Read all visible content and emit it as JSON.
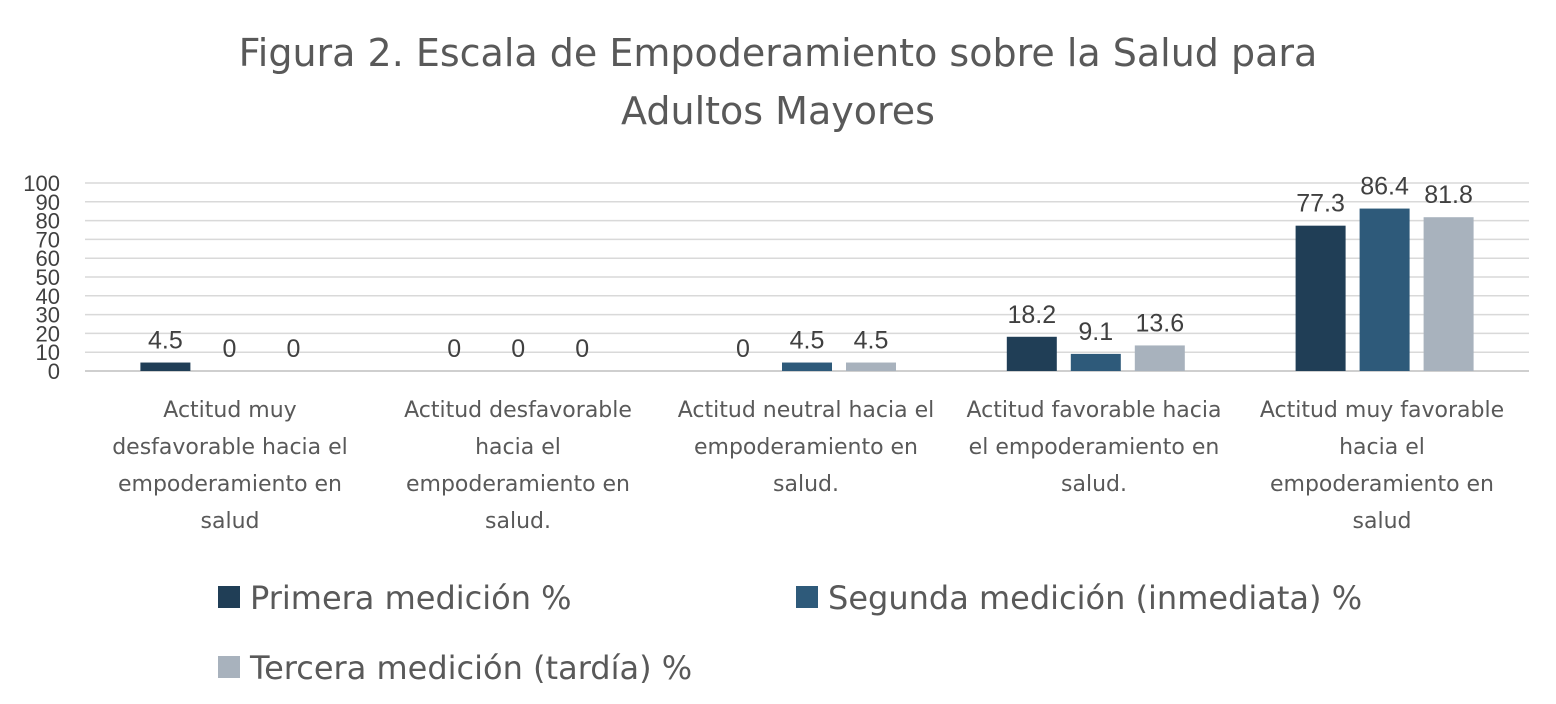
{
  "chart_data": {
    "type": "bar",
    "title_lines": [
      "Figura 2. Escala de Empoderamiento sobre la Salud para",
      "Adultos Mayores"
    ],
    "category_lines": [
      [
        "Actitud muy",
        "desfavorable hacia el",
        "empoderamiento en",
        "salud"
      ],
      [
        "Actitud desfavorable",
        "hacia el",
        "empoderamiento en",
        "salud."
      ],
      [
        "Actitud neutral hacia el",
        "empoderamiento en",
        "salud."
      ],
      [
        "Actitud favorable hacia",
        "el empoderamiento en",
        "salud."
      ],
      [
        "Actitud muy favorable",
        "hacia el",
        "empoderamiento en",
        "salud"
      ]
    ],
    "series": [
      {
        "name": "Primera medición %",
        "color": "#203e56",
        "values": [
          4.5,
          0,
          0,
          18.2,
          77.3
        ]
      },
      {
        "name": "Segunda medición (inmediata) %",
        "color": "#2e5a7a",
        "values": [
          0,
          0,
          4.5,
          9.1,
          86.4
        ]
      },
      {
        "name": "Tercera medición (tardía) %",
        "color": "#a8b2bd",
        "values": [
          0,
          0,
          4.5,
          13.6,
          81.8
        ]
      }
    ],
    "ylim": [
      0,
      100
    ],
    "yticks": [
      0,
      10,
      20,
      30,
      40,
      50,
      60,
      70,
      80,
      90,
      100
    ],
    "grid": true,
    "legend_position": "bottom",
    "xlabel": "",
    "ylabel": ""
  }
}
